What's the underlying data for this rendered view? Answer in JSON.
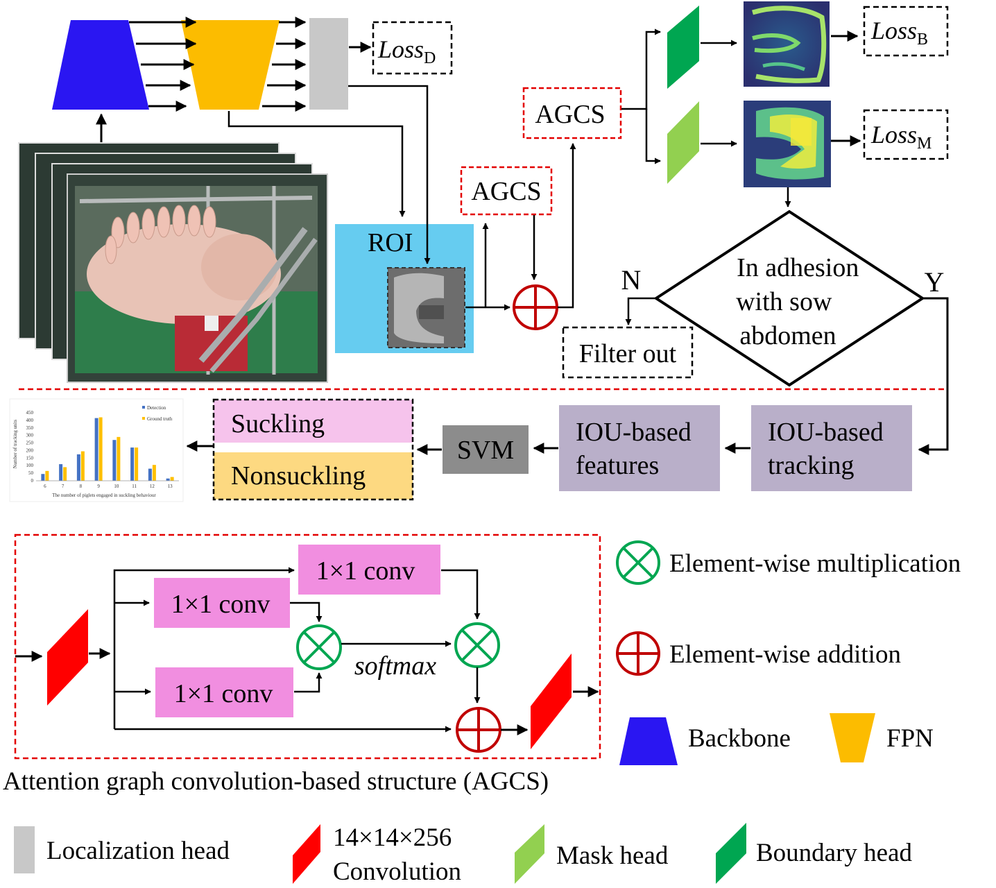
{
  "colors": {
    "backbone": "#2a16f2",
    "fpn": "#fcbc00",
    "localization_head": "#c8c8c8",
    "mask_head": "#92d050",
    "boundary_head": "#00a651",
    "conv_feature": "#ff0000",
    "roi_bg": "#66ccf0",
    "pink_box": "#f18ee0",
    "purple_box": "#b9afc9",
    "svm_box": "#8c8c8c",
    "suckling": "#f6c3ec",
    "nonsuckling": "#fdd981",
    "red_dashed": "#e30000",
    "mult_symbol": "#00a651",
    "add_symbol": "#c00000"
  },
  "pipeline": {
    "loss_d": {
      "base": "Loss",
      "sub": "D"
    },
    "loss_b": {
      "base": "Loss",
      "sub": "B"
    },
    "loss_m": {
      "base": "Loss",
      "sub": "M"
    },
    "agcs_top": "AGCS",
    "agcs_mid": "AGCS",
    "roi": "ROI",
    "decision_lines": [
      "In adhesion",
      "with sow",
      "abdomen"
    ],
    "no_label": "N",
    "yes_label": "Y",
    "filter_out": "Filter  out",
    "iou_tracking_lines": [
      "IOU-based",
      "tracking"
    ],
    "iou_features_lines": [
      "IOU-based",
      "features"
    ],
    "svm": "SVM",
    "suckling": "Suckling",
    "nonsuckling": "Nonsuckling"
  },
  "agcs_block": {
    "conv_top": "1×1 conv",
    "conv_mid": "1×1 conv",
    "conv_bottom": "1×1 conv",
    "softmax": "softmax",
    "caption": "Attention graph convolution-based structure (AGCS)"
  },
  "legend": {
    "mult": "Element-wise multiplication",
    "add": "Element-wise addition",
    "backbone": "Backbone",
    "fpn": "FPN",
    "localization": "Localization  head",
    "conv_lines": [
      "14×14×256",
      "Convolution"
    ],
    "mask": "Mask head",
    "boundary": "Boundary head"
  },
  "chart_data": {
    "type": "bar",
    "categories": [
      "6",
      "7",
      "8",
      "9",
      "10",
      "11",
      "12",
      "13"
    ],
    "series": [
      {
        "name": "Detection",
        "color": "#4472c4",
        "values": [
          45,
          110,
          175,
          415,
          270,
          220,
          80,
          15
        ]
      },
      {
        "name": "Ground truth",
        "color": "#ffc000",
        "values": [
          65,
          90,
          195,
          420,
          290,
          220,
          105,
          25
        ]
      }
    ],
    "yticks": [
      0,
      50,
      100,
      150,
      200,
      250,
      300,
      350,
      400,
      450
    ],
    "ylim": [
      0,
      450
    ],
    "xlabel": "The number of piglets engaged in suckling behaviour",
    "ylabel": "Number of tracking units",
    "legend_position": "top-right",
    "grid": false
  }
}
